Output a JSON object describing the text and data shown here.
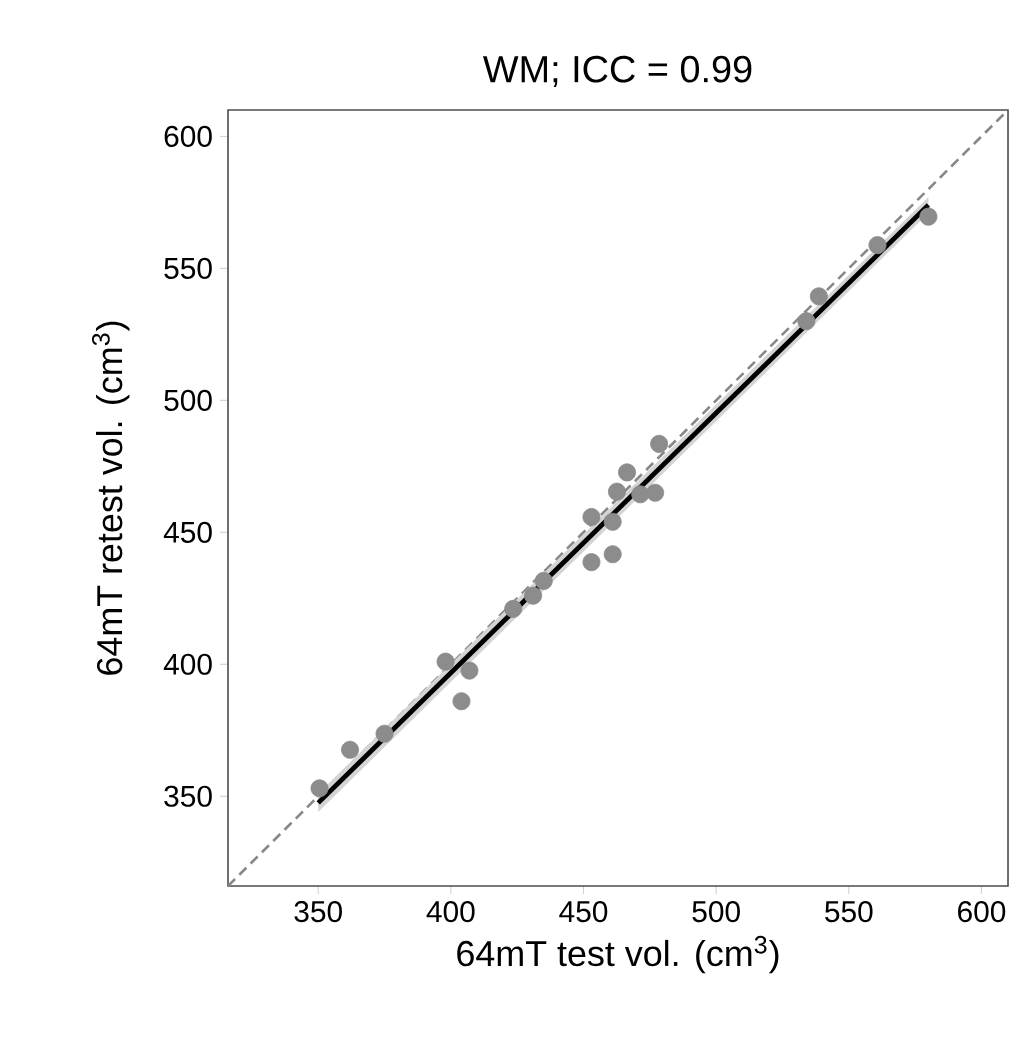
{
  "chart_data": {
    "type": "scatter",
    "title": "WM; ICC = 0.99",
    "xlabel": "64mT test vol. (cm$^{3}$)",
    "ylabel": "64mT retest vol. (cm$^{3}$)",
    "xlim": [
      316,
      610
    ],
    "ylim": [
      316,
      610
    ],
    "xticks": [
      350,
      400,
      450,
      500,
      550,
      600
    ],
    "yticks": [
      350,
      400,
      450,
      500,
      550,
      600
    ],
    "grid": false,
    "series": [
      {
        "type": "line",
        "color": "#888888",
        "line_style": "dashed",
        "marker": "none",
        "x": [
          316,
          610
        ],
        "values": [
          316,
          610
        ]
      },
      {
        "color": "#8c8c8c",
        "marker": "circle",
        "x": [
          350.5,
          362,
          375,
          398,
          404,
          407,
          423.5,
          431,
          435,
          453,
          453,
          461,
          461,
          462.6,
          466.4,
          471.4,
          477,
          478.5,
          534,
          538.7,
          560.8,
          580
        ],
        "values": [
          353,
          367.6,
          373.7,
          401,
          386,
          397.6,
          421,
          426,
          431.6,
          455.8,
          438.7,
          441.7,
          454,
          465.4,
          472.7,
          464.4,
          465,
          483.5,
          530,
          539.4,
          558.8,
          569.6
        ]
      },
      {
        "type": "line",
        "color": "#000000",
        "line_style": "solid",
        "marker": "none",
        "x": [
          350,
          580
        ],
        "values": [
          347.5,
          574
        ],
        "lower": [
          344,
          571
        ],
        "upper": [
          351,
          577
        ]
      }
    ]
  }
}
